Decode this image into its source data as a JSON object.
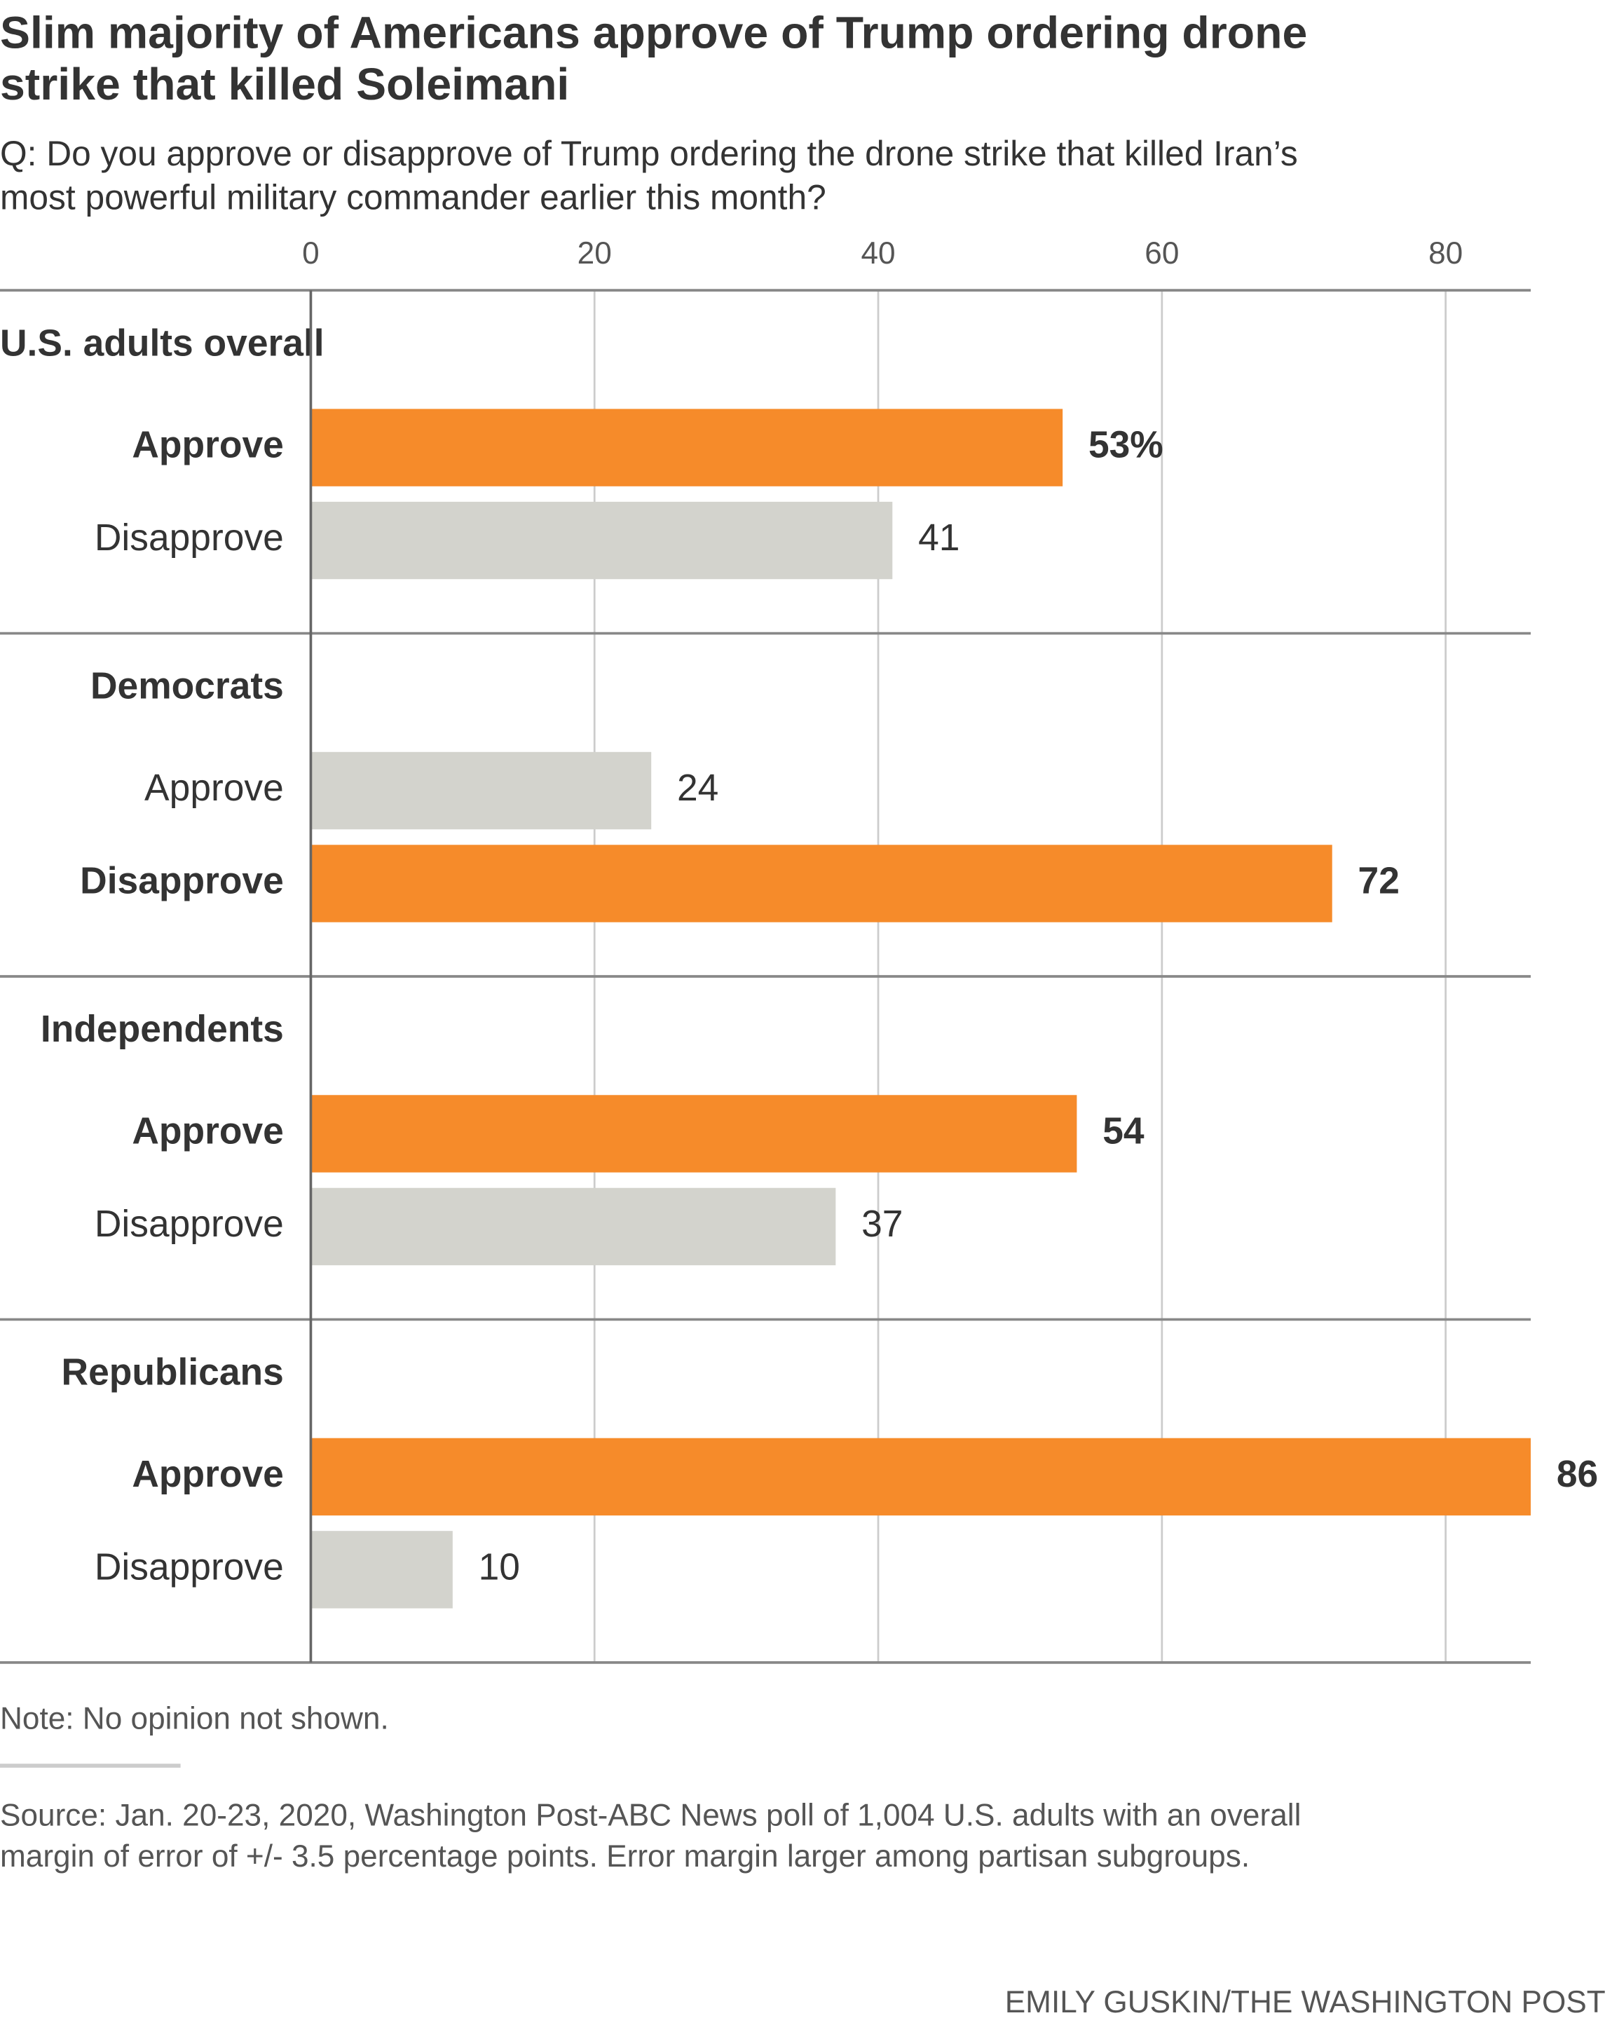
{
  "chart_data": {
    "type": "grouped-bar",
    "title": [
      "Slim majority of Americans approve of Trump ordering drone",
      "strike that killed Soleimani"
    ],
    "subtitle": [
      "Q: Do you approve or disapprove of Trump ordering the drone strike that killed Iran’s",
      "most powerful military commander earlier this month?"
    ],
    "xlim": [
      0,
      86
    ],
    "xticks": [
      0,
      20,
      40,
      60,
      80
    ],
    "grid": true,
    "highlight_color": "#f68b2a",
    "groups": [
      {
        "name": "U.S. adults overall",
        "categories": [
          "Approve",
          "Disapprove"
        ],
        "values": [
          53,
          41
        ],
        "value_labels": [
          "53%",
          "41"
        ],
        "colors": [
          "#f68b2a",
          "#d3d3cd"
        ]
      },
      {
        "name": "Democrats",
        "categories": [
          "Approve",
          "Disapprove"
        ],
        "values": [
          24,
          72
        ],
        "colors": [
          "#d3d3cd",
          "#f68b2a"
        ]
      },
      {
        "name": "Independents",
        "categories": [
          "Approve",
          "Disapprove"
        ],
        "values": [
          54,
          37
        ],
        "colors": [
          "#f68b2a",
          "#d3d3cd"
        ]
      },
      {
        "name": "Republicans",
        "categories": [
          "Approve",
          "Disapprove"
        ],
        "values": [
          86,
          10
        ],
        "colors": [
          "#f68b2a",
          "#d3d3cd"
        ]
      }
    ],
    "note": "Note: No opinion not shown.",
    "source": [
      "Source: Jan. 20-23, 2020, Washington Post-ABC News poll of 1,004 U.S. adults with an overall",
      "margin of error of +/- 3.5 percentage points. Error margin larger among partisan subgroups."
    ],
    "credit": "EMILY GUSKIN/THE WASHINGTON POST"
  }
}
